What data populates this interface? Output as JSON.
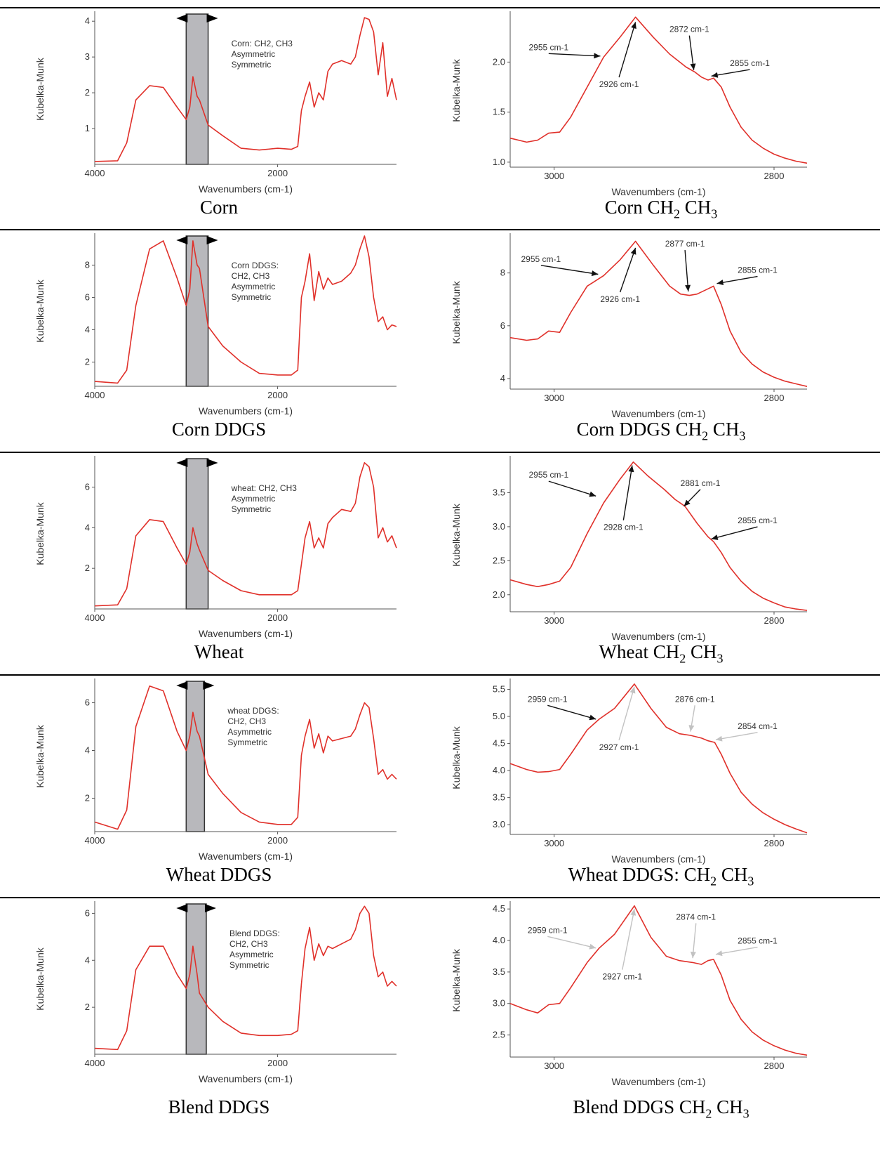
{
  "colors": {
    "line": "#e0302a",
    "band": "#b8b8bc",
    "axis": "#555555",
    "arrow": "#111111",
    "light_arrow": "#c2c2c2"
  },
  "chart_data": [
    {
      "id": "corn",
      "type": "line",
      "caption": "Corn",
      "caption_sub": [],
      "xlabel": "Wavenumbers (cm-1)",
      "ylabel": "Kubelka-Munk",
      "xlim": [
        4000,
        700
      ],
      "ylim": [
        0,
        4.2
      ],
      "xticks": [
        4000,
        2000
      ],
      "yticks": [
        1,
        2,
        3,
        4
      ],
      "band": [
        3000,
        2760
      ],
      "note": [
        "Corn: CH2, CH3",
        "Asymmetric",
        "Symmetric"
      ],
      "x": [
        4000,
        3750,
        3650,
        3550,
        3400,
        3250,
        3100,
        3000,
        2960,
        2926,
        2880,
        2855,
        2760,
        2600,
        2400,
        2200,
        2000,
        1850,
        1780,
        1740,
        1700,
        1650,
        1600,
        1550,
        1500,
        1450,
        1400,
        1300,
        1200,
        1150,
        1100,
        1050,
        1000,
        950,
        900,
        850,
        800,
        750,
        700
      ],
      "y": [
        0.08,
        0.1,
        0.6,
        1.8,
        2.2,
        2.15,
        1.6,
        1.25,
        1.6,
        2.45,
        1.9,
        1.8,
        1.1,
        0.8,
        0.45,
        0.4,
        0.45,
        0.42,
        0.5,
        1.5,
        1.9,
        2.3,
        1.6,
        2.0,
        1.8,
        2.6,
        2.8,
        2.9,
        2.8,
        3.0,
        3.6,
        4.1,
        4.05,
        3.7,
        2.5,
        3.4,
        1.9,
        2.4,
        1.8
      ]
    },
    {
      "id": "corn-ch",
      "type": "line",
      "caption": "Corn",
      "caption_sub": [
        "CH",
        "2",
        " CH",
        "3"
      ],
      "xlabel": "Wavenumbers (cm-1)",
      "ylabel": "Kubelka-Munk",
      "xlim": [
        3040,
        2770
      ],
      "ylim": [
        0.95,
        2.48
      ],
      "xticks": [
        3000,
        2800
      ],
      "yticks": [
        1.0,
        1.5,
        2.0
      ],
      "x": [
        3040,
        3025,
        3015,
        3005,
        2995,
        2985,
        2970,
        2955,
        2940,
        2926,
        2910,
        2895,
        2880,
        2872,
        2866,
        2860,
        2855,
        2848,
        2840,
        2830,
        2820,
        2810,
        2800,
        2790,
        2780,
        2770
      ],
      "y": [
        1.24,
        1.2,
        1.22,
        1.29,
        1.3,
        1.45,
        1.75,
        2.05,
        2.25,
        2.45,
        2.25,
        2.08,
        1.95,
        1.9,
        1.85,
        1.82,
        1.84,
        1.75,
        1.55,
        1.35,
        1.22,
        1.14,
        1.08,
        1.04,
        1.01,
        0.99
      ],
      "annotations": [
        {
          "text": "2955 cm-1",
          "tx": 3005,
          "ty": 2.12,
          "ax": 2958,
          "ay": 2.06,
          "light": false
        },
        {
          "text": "2926 cm-1",
          "tx": 2941,
          "ty": 1.75,
          "ax": 2926,
          "ay": 2.4,
          "light": false
        },
        {
          "text": "2872 cm-1",
          "tx": 2877,
          "ty": 2.3,
          "ax": 2873,
          "ay": 1.92,
          "light": false
        },
        {
          "text": "2855 cm-1",
          "tx": 2822,
          "ty": 1.96,
          "ax": 2857,
          "ay": 1.86,
          "light": false
        }
      ]
    },
    {
      "id": "corn-ddgs",
      "type": "line",
      "caption": "Corn DDGS",
      "caption_sub": [],
      "xlabel": "Wavenumbers (cm-1)",
      "ylabel": "Kubelka-Munk",
      "xlim": [
        4000,
        700
      ],
      "ylim": [
        0.5,
        9.8
      ],
      "xticks": [
        4000,
        2000
      ],
      "yticks": [
        2,
        4,
        6,
        8
      ],
      "band": [
        3000,
        2760
      ],
      "note": [
        "Corn DDGS:",
        "CH2, CH3",
        "Asymmetric",
        "Symmetric"
      ],
      "x": [
        4000,
        3750,
        3650,
        3550,
        3400,
        3250,
        3100,
        3000,
        2960,
        2926,
        2880,
        2855,
        2760,
        2600,
        2400,
        2200,
        2000,
        1850,
        1780,
        1740,
        1700,
        1650,
        1600,
        1550,
        1500,
        1450,
        1400,
        1300,
        1200,
        1150,
        1100,
        1050,
        1000,
        950,
        900,
        850,
        800,
        750,
        700
      ],
      "y": [
        0.8,
        0.7,
        1.5,
        5.5,
        9.0,
        9.5,
        7.2,
        5.5,
        6.5,
        9.5,
        8.0,
        7.8,
        4.2,
        3.0,
        2.0,
        1.3,
        1.2,
        1.2,
        1.5,
        6.0,
        7.0,
        8.7,
        5.8,
        7.6,
        6.5,
        7.2,
        6.8,
        7.0,
        7.5,
        8.0,
        9.0,
        9.8,
        8.5,
        6.0,
        4.5,
        4.8,
        4.0,
        4.3,
        4.2
      ]
    },
    {
      "id": "corn-ddgs-ch",
      "type": "line",
      "caption": "Corn DDGS",
      "caption_sub": [
        "CH",
        "2",
        " CH",
        "3"
      ],
      "xlabel": "Wavenumbers (cm-1)",
      "ylabel": "Kubelka-Munk",
      "xlim": [
        3040,
        2770
      ],
      "ylim": [
        3.6,
        9.4
      ],
      "xticks": [
        3000,
        2800
      ],
      "yticks": [
        4,
        6,
        8
      ],
      "x": [
        3040,
        3025,
        3015,
        3005,
        2995,
        2985,
        2970,
        2955,
        2940,
        2926,
        2910,
        2895,
        2885,
        2877,
        2870,
        2860,
        2855,
        2848,
        2840,
        2830,
        2820,
        2810,
        2800,
        2790,
        2780,
        2770
      ],
      "y": [
        5.55,
        5.45,
        5.5,
        5.8,
        5.75,
        6.5,
        7.5,
        7.9,
        8.5,
        9.2,
        8.3,
        7.5,
        7.2,
        7.15,
        7.2,
        7.4,
        7.5,
        6.8,
        5.8,
        5.0,
        4.55,
        4.25,
        4.05,
        3.9,
        3.8,
        3.7
      ],
      "annotations": [
        {
          "text": "2955 cm-1",
          "tx": 3012,
          "ty": 8.42,
          "ax": 2960,
          "ay": 7.95,
          "light": false
        },
        {
          "text": "2926 cm-1",
          "tx": 2940,
          "ty": 6.9,
          "ax": 2926,
          "ay": 8.95,
          "light": false
        },
        {
          "text": "2877 cm-1",
          "tx": 2881,
          "ty": 9.0,
          "ax": 2878,
          "ay": 7.3,
          "light": false
        },
        {
          "text": "2855 cm-1",
          "tx": 2815,
          "ty": 8.0,
          "ax": 2852,
          "ay": 7.6,
          "light": false
        }
      ]
    },
    {
      "id": "wheat",
      "type": "line",
      "caption": "Wheat",
      "caption_sub": [],
      "xlabel": "Wavenumbers (cm-1)",
      "ylabel": "Kubelka-Munk",
      "xlim": [
        4000,
        700
      ],
      "ylim": [
        0,
        7.4
      ],
      "xticks": [
        4000,
        2000
      ],
      "yticks": [
        2,
        4,
        6
      ],
      "band": [
        3000,
        2760
      ],
      "note": [
        "wheat: CH2, CH3",
        "Asymmetric",
        "Symmetric"
      ],
      "x": [
        4000,
        3750,
        3650,
        3550,
        3400,
        3250,
        3100,
        3000,
        2960,
        2926,
        2880,
        2855,
        2760,
        2600,
        2400,
        2200,
        2000,
        1850,
        1780,
        1740,
        1700,
        1650,
        1600,
        1550,
        1500,
        1450,
        1400,
        1300,
        1200,
        1150,
        1100,
        1050,
        1000,
        950,
        900,
        850,
        800,
        750,
        700
      ],
      "y": [
        0.15,
        0.2,
        1.0,
        3.6,
        4.4,
        4.3,
        3.0,
        2.2,
        2.8,
        4.0,
        3.2,
        2.9,
        1.9,
        1.4,
        0.9,
        0.7,
        0.7,
        0.7,
        0.9,
        2.2,
        3.5,
        4.3,
        3.0,
        3.5,
        3.0,
        4.2,
        4.5,
        4.9,
        4.8,
        5.2,
        6.5,
        7.2,
        7.0,
        6.0,
        3.5,
        4.0,
        3.3,
        3.6,
        3.0
      ]
    },
    {
      "id": "wheat-ch",
      "type": "line",
      "caption": "Wheat",
      "caption_sub": [
        "CH",
        "2",
        " CH",
        "3"
      ],
      "xlabel": "Wavenumbers (cm-1)",
      "ylabel": "Kubelka-Munk",
      "xlim": [
        3040,
        2770
      ],
      "ylim": [
        1.75,
        4.0
      ],
      "xticks": [
        3000,
        2800
      ],
      "yticks": [
        2.0,
        2.5,
        3.0,
        3.5
      ],
      "x": [
        3040,
        3025,
        3015,
        3005,
        2995,
        2985,
        2970,
        2955,
        2940,
        2928,
        2915,
        2900,
        2890,
        2881,
        2870,
        2860,
        2855,
        2848,
        2840,
        2830,
        2820,
        2810,
        2800,
        2790,
        2780,
        2770
      ],
      "y": [
        2.22,
        2.15,
        2.12,
        2.15,
        2.2,
        2.4,
        2.9,
        3.35,
        3.7,
        3.95,
        3.75,
        3.55,
        3.4,
        3.3,
        3.05,
        2.85,
        2.78,
        2.62,
        2.4,
        2.2,
        2.05,
        1.95,
        1.88,
        1.82,
        1.79,
        1.77
      ],
      "annotations": [
        {
          "text": "2955 cm-1",
          "tx": 3005,
          "ty": 3.72,
          "ax": 2962,
          "ay": 3.45,
          "light": false
        },
        {
          "text": "2928 cm-1",
          "tx": 2937,
          "ty": 2.95,
          "ax": 2929,
          "ay": 3.9,
          "light": false
        },
        {
          "text": "2881 cm-1",
          "tx": 2867,
          "ty": 3.6,
          "ax": 2882,
          "ay": 3.3,
          "light": false
        },
        {
          "text": "2855 cm-1",
          "tx": 2815,
          "ty": 3.05,
          "ax": 2857,
          "ay": 2.82,
          "light": false
        }
      ]
    },
    {
      "id": "wheat-ddgs",
      "type": "line",
      "caption": "Wheat DDGS",
      "caption_sub": [],
      "xlabel": "Wavenumbers (cm-1)",
      "ylabel": "Kubelka-Munk",
      "xlim": [
        4000,
        700
      ],
      "ylim": [
        0.6,
        6.9
      ],
      "xticks": [
        4000,
        2000
      ],
      "yticks": [
        2,
        4,
        6
      ],
      "band": [
        3000,
        2800
      ],
      "note": [
        "wheat DDGS:",
        "CH2, CH3",
        "Asymmetric",
        "Symmetric"
      ],
      "x": [
        4000,
        3750,
        3650,
        3550,
        3400,
        3250,
        3100,
        3000,
        2960,
        2926,
        2880,
        2855,
        2760,
        2600,
        2400,
        2200,
        2000,
        1850,
        1780,
        1740,
        1700,
        1650,
        1600,
        1550,
        1500,
        1450,
        1400,
        1300,
        1200,
        1150,
        1100,
        1050,
        1000,
        950,
        900,
        850,
        800,
        750,
        700
      ],
      "y": [
        1.0,
        0.7,
        1.5,
        5.0,
        6.7,
        6.5,
        4.8,
        4.0,
        4.6,
        5.6,
        4.8,
        4.6,
        3.0,
        2.2,
        1.4,
        1.0,
        0.9,
        0.9,
        1.2,
        3.8,
        4.6,
        5.3,
        4.1,
        4.7,
        3.9,
        4.6,
        4.4,
        4.5,
        4.6,
        4.9,
        5.5,
        6.0,
        5.8,
        4.5,
        3.0,
        3.2,
        2.8,
        3.0,
        2.8
      ]
    },
    {
      "id": "wheat-ddgs-ch",
      "type": "line",
      "caption": "Wheat DDGS:",
      "caption_sub": [
        "CH",
        "2",
        " CH",
        "3"
      ],
      "xlabel": "Wavenumbers (cm-1)",
      "ylabel": "Kubelka-Munk",
      "xlim": [
        3040,
        2770
      ],
      "ylim": [
        2.82,
        5.65
      ],
      "xticks": [
        3000,
        2800
      ],
      "yticks": [
        3.0,
        3.5,
        4.0,
        4.5,
        5.0,
        5.5
      ],
      "x": [
        3040,
        3025,
        3015,
        3005,
        2995,
        2985,
        2970,
        2959,
        2945,
        2927,
        2912,
        2898,
        2886,
        2876,
        2866,
        2860,
        2854,
        2848,
        2840,
        2830,
        2820,
        2810,
        2800,
        2790,
        2780,
        2770
      ],
      "y": [
        4.13,
        4.02,
        3.97,
        3.98,
        4.02,
        4.3,
        4.75,
        4.95,
        5.15,
        5.6,
        5.15,
        4.8,
        4.68,
        4.65,
        4.6,
        4.55,
        4.52,
        4.3,
        3.95,
        3.6,
        3.38,
        3.22,
        3.1,
        3.0,
        2.92,
        2.85
      ],
      "annotations": [
        {
          "text": "2959 cm-1",
          "tx": 3006,
          "ty": 5.27,
          "ax": 2962,
          "ay": 4.95,
          "light": false
        },
        {
          "text": "2927 cm-1",
          "tx": 2941,
          "ty": 4.38,
          "ax": 2927,
          "ay": 5.55,
          "light": true
        },
        {
          "text": "2876 cm-1",
          "tx": 2872,
          "ty": 5.27,
          "ax": 2876,
          "ay": 4.72,
          "light": true
        },
        {
          "text": "2854 cm-1",
          "tx": 2815,
          "ty": 4.77,
          "ax": 2853,
          "ay": 4.57,
          "light": true
        }
      ]
    },
    {
      "id": "blend-ddgs",
      "type": "line",
      "caption": "Blend DDGS",
      "caption_sub": [],
      "xlabel": "Wavenumbers (cm-1)",
      "ylabel": "Kubelka-Munk",
      "xlim": [
        4000,
        700
      ],
      "ylim": [
        0,
        6.4
      ],
      "xticks": [
        4000,
        2000
      ],
      "yticks": [
        2,
        4,
        6
      ],
      "band": [
        3000,
        2780
      ],
      "note": [
        "Blend DDGS:",
        "CH2, CH3",
        "Asymmetric",
        "Symmetric"
      ],
      "x": [
        4000,
        3750,
        3650,
        3550,
        3400,
        3250,
        3100,
        3000,
        2960,
        2926,
        2880,
        2855,
        2760,
        2600,
        2400,
        2200,
        2000,
        1850,
        1780,
        1740,
        1700,
        1650,
        1600,
        1550,
        1500,
        1450,
        1400,
        1300,
        1200,
        1150,
        1100,
        1050,
        1000,
        950,
        900,
        850,
        800,
        750,
        700
      ],
      "y": [
        0.25,
        0.2,
        1.0,
        3.6,
        4.6,
        4.6,
        3.4,
        2.8,
        3.4,
        4.6,
        3.4,
        2.6,
        2.0,
        1.4,
        0.9,
        0.8,
        0.8,
        0.85,
        1.0,
        3.0,
        4.5,
        5.4,
        4.0,
        4.7,
        4.2,
        4.6,
        4.5,
        4.7,
        4.9,
        5.3,
        6.0,
        6.3,
        6.0,
        4.2,
        3.3,
        3.5,
        2.9,
        3.1,
        2.9
      ]
    },
    {
      "id": "blend-ddgs-ch",
      "type": "line",
      "caption": "Blend DDGS",
      "caption_sub": [
        "CH",
        "2",
        " CH",
        "3"
      ],
      "xlabel": "Wavenumbers (cm-1)",
      "ylabel": "Kubelka-Munk",
      "xlim": [
        3040,
        2770
      ],
      "ylim": [
        2.15,
        4.58
      ],
      "xticks": [
        3000,
        2800
      ],
      "yticks": [
        2.5,
        3.0,
        3.5,
        4.0,
        4.5
      ],
      "x": [
        3040,
        3025,
        3015,
        3005,
        2995,
        2985,
        2970,
        2959,
        2945,
        2927,
        2912,
        2898,
        2886,
        2874,
        2866,
        2860,
        2855,
        2848,
        2840,
        2830,
        2820,
        2810,
        2800,
        2790,
        2780,
        2770
      ],
      "y": [
        3.0,
        2.9,
        2.85,
        2.98,
        3.0,
        3.25,
        3.65,
        3.88,
        4.1,
        4.55,
        4.05,
        3.75,
        3.68,
        3.65,
        3.62,
        3.68,
        3.7,
        3.45,
        3.05,
        2.75,
        2.55,
        2.42,
        2.33,
        2.26,
        2.21,
        2.18
      ],
      "annotations": [
        {
          "text": "2959 cm-1",
          "tx": 3006,
          "ty": 4.12,
          "ax": 2962,
          "ay": 3.88,
          "light": true
        },
        {
          "text": "2927 cm-1",
          "tx": 2938,
          "ty": 3.38,
          "ax": 2927,
          "ay": 4.5,
          "light": true
        },
        {
          "text": "2874 cm-1",
          "tx": 2871,
          "ty": 4.33,
          "ax": 2874,
          "ay": 3.72,
          "light": true
        },
        {
          "text": "2855 cm-1",
          "tx": 2815,
          "ty": 3.95,
          "ax": 2853,
          "ay": 3.78,
          "light": true
        }
      ]
    }
  ]
}
